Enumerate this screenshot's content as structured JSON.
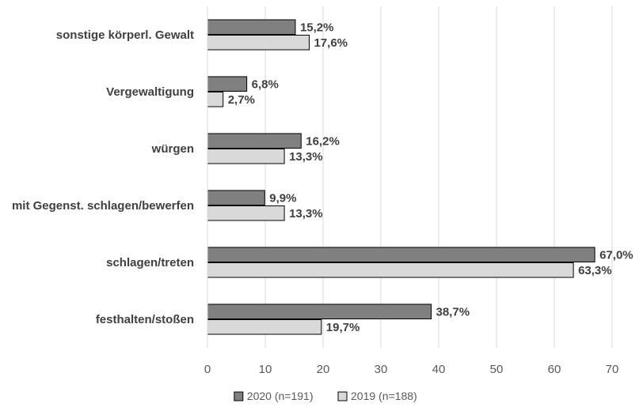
{
  "chart_data": {
    "type": "bar",
    "orientation": "horizontal",
    "categories": [
      "sonstige körperl. Gewalt",
      "Vergewaltigung",
      "würgen",
      "mit Gegenst. schlagen/bewerfen",
      "schlagen/treten",
      "festhalten/stoßen"
    ],
    "series": [
      {
        "name": "2020 (n=191)",
        "color": "#808080",
        "values": [
          15.2,
          6.8,
          16.2,
          9.9,
          67.0,
          38.7
        ],
        "labels": [
          "15,2%",
          "6,8%",
          "16,2%",
          "9,9%",
          "67,0%",
          "38,7%"
        ]
      },
      {
        "name": "2019 (n=188)",
        "color": "#d9d9d9",
        "values": [
          17.6,
          2.7,
          13.3,
          13.3,
          63.3,
          19.7
        ],
        "labels": [
          "17,6%",
          "2,7%",
          "13,3%",
          "13,3%",
          "63,3%",
          "19,7%"
        ]
      }
    ],
    "xlim": [
      0,
      70
    ],
    "xticks": [
      0,
      10,
      20,
      30,
      40,
      50,
      60,
      70
    ],
    "xtick_labels": [
      "0",
      "10",
      "20",
      "30",
      "40",
      "50",
      "60",
      "70"
    ],
    "grid": true,
    "legend": "bottom"
  }
}
